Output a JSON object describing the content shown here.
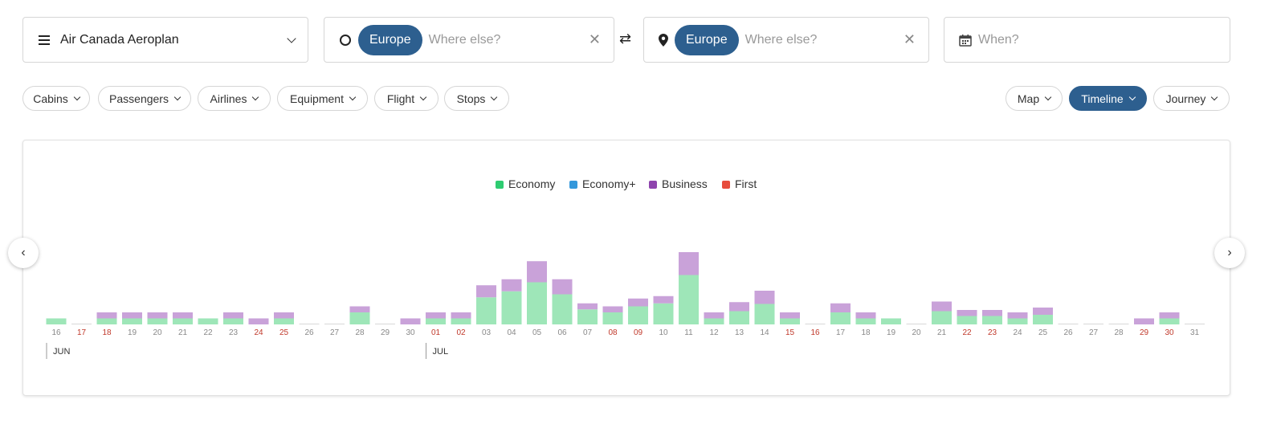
{
  "program": {
    "label": "Air Canada Aeroplan",
    "icon": "menu-icon"
  },
  "origin": {
    "chip": "Europe",
    "placeholder": "Where else?",
    "icon": "circle-icon"
  },
  "destination": {
    "chip": "Europe",
    "placeholder": "Where else?",
    "icon": "map-pin-icon"
  },
  "swap_icon": "swap-icon",
  "when": {
    "placeholder": "When?",
    "icon": "calendar-icon"
  },
  "filters": [
    "Cabins",
    "Passengers",
    "Airlines",
    "Equipment",
    "Flight",
    "Stops"
  ],
  "views": [
    {
      "label": "Map",
      "active": false
    },
    {
      "label": "Timeline",
      "active": true
    },
    {
      "label": "Journey",
      "active": false
    }
  ],
  "colors": {
    "accent": "#2d5f8f",
    "economy": "#2ecc71",
    "economy_plus": "#3498db",
    "business": "#8e44ad",
    "first": "#e74c3c",
    "weekend_label": "#c0392b"
  },
  "chart_data": {
    "type": "bar",
    "stacked": true,
    "legend_position": "top-center",
    "series": [
      {
        "name": "Economy"
      },
      {
        "name": "Economy+"
      },
      {
        "name": "Business"
      },
      {
        "name": "First"
      }
    ],
    "months": [
      {
        "label": "JUN",
        "start_index": 0
      },
      {
        "label": "JUL",
        "start_index": 15
      }
    ],
    "days": [
      {
        "label": "16",
        "weekend": false,
        "economy": 1,
        "economy_plus": 0,
        "business": 0,
        "first": 0
      },
      {
        "label": "17",
        "weekend": true,
        "economy": 0,
        "economy_plus": 0,
        "business": 0,
        "first": 0
      },
      {
        "label": "18",
        "weekend": true,
        "economy": 1,
        "economy_plus": 0,
        "business": 1,
        "first": 0
      },
      {
        "label": "19",
        "weekend": false,
        "economy": 1,
        "economy_plus": 0,
        "business": 1,
        "first": 0
      },
      {
        "label": "20",
        "weekend": false,
        "economy": 1,
        "economy_plus": 0,
        "business": 1,
        "first": 0
      },
      {
        "label": "21",
        "weekend": false,
        "economy": 1,
        "economy_plus": 0,
        "business": 1,
        "first": 0
      },
      {
        "label": "22",
        "weekend": false,
        "economy": 1,
        "economy_plus": 0,
        "business": 0,
        "first": 0
      },
      {
        "label": "23",
        "weekend": false,
        "economy": 1,
        "economy_plus": 0,
        "business": 1,
        "first": 0
      },
      {
        "label": "24",
        "weekend": true,
        "economy": 0,
        "economy_plus": 0,
        "business": 1,
        "first": 0
      },
      {
        "label": "25",
        "weekend": true,
        "economy": 1,
        "economy_plus": 0,
        "business": 1,
        "first": 0
      },
      {
        "label": "26",
        "weekend": false,
        "economy": 0,
        "economy_plus": 0,
        "business": 0,
        "first": 0
      },
      {
        "label": "27",
        "weekend": false,
        "economy": 0,
        "economy_plus": 0,
        "business": 0,
        "first": 0
      },
      {
        "label": "28",
        "weekend": false,
        "economy": 2,
        "economy_plus": 0,
        "business": 1,
        "first": 0
      },
      {
        "label": "29",
        "weekend": false,
        "economy": 0,
        "economy_plus": 0,
        "business": 0,
        "first": 0
      },
      {
        "label": "30",
        "weekend": false,
        "economy": 0,
        "economy_plus": 0,
        "business": 1,
        "first": 0
      },
      {
        "label": "01",
        "weekend": true,
        "economy": 1,
        "economy_plus": 0,
        "business": 1,
        "first": 0
      },
      {
        "label": "02",
        "weekend": true,
        "economy": 1,
        "economy_plus": 0,
        "business": 1,
        "first": 0
      },
      {
        "label": "03",
        "weekend": false,
        "economy": 4.5,
        "economy_plus": 0,
        "business": 2,
        "first": 0
      },
      {
        "label": "04",
        "weekend": false,
        "economy": 5.5,
        "economy_plus": 0,
        "business": 2,
        "first": 0
      },
      {
        "label": "05",
        "weekend": false,
        "economy": 7,
        "economy_plus": 0,
        "business": 3.5,
        "first": 0
      },
      {
        "label": "06",
        "weekend": false,
        "economy": 5,
        "economy_plus": 0,
        "business": 2.5,
        "first": 0
      },
      {
        "label": "07",
        "weekend": false,
        "economy": 2.5,
        "economy_plus": 0,
        "business": 1,
        "first": 0
      },
      {
        "label": "08",
        "weekend": true,
        "economy": 2,
        "economy_plus": 0,
        "business": 1,
        "first": 0
      },
      {
        "label": "09",
        "weekend": true,
        "economy": 3,
        "economy_plus": 0,
        "business": 1.3,
        "first": 0
      },
      {
        "label": "10",
        "weekend": false,
        "economy": 3.5,
        "economy_plus": 0,
        "business": 1.2,
        "first": 0
      },
      {
        "label": "11",
        "weekend": false,
        "economy": 8.2,
        "economy_plus": 0,
        "business": 3.8,
        "first": 0
      },
      {
        "label": "12",
        "weekend": false,
        "economy": 1,
        "economy_plus": 0,
        "business": 1,
        "first": 0
      },
      {
        "label": "13",
        "weekend": false,
        "economy": 2.2,
        "economy_plus": 0,
        "business": 1.5,
        "first": 0
      },
      {
        "label": "14",
        "weekend": false,
        "economy": 3.4,
        "economy_plus": 0,
        "business": 2.2,
        "first": 0
      },
      {
        "label": "15",
        "weekend": true,
        "economy": 1,
        "economy_plus": 0,
        "business": 1,
        "first": 0
      },
      {
        "label": "16",
        "weekend": true,
        "economy": 0,
        "economy_plus": 0,
        "business": 0,
        "first": 0
      },
      {
        "label": "17",
        "weekend": false,
        "economy": 2,
        "economy_plus": 0,
        "business": 1.5,
        "first": 0
      },
      {
        "label": "18",
        "weekend": false,
        "economy": 1,
        "economy_plus": 0,
        "business": 1,
        "first": 0
      },
      {
        "label": "19",
        "weekend": false,
        "economy": 1,
        "economy_plus": 0,
        "business": 0,
        "first": 0
      },
      {
        "label": "20",
        "weekend": false,
        "economy": 0,
        "economy_plus": 0,
        "business": 0,
        "first": 0
      },
      {
        "label": "21",
        "weekend": false,
        "economy": 2.2,
        "economy_plus": 0,
        "business": 1.6,
        "first": 0
      },
      {
        "label": "22",
        "weekend": true,
        "economy": 1.4,
        "economy_plus": 0,
        "business": 1,
        "first": 0
      },
      {
        "label": "23",
        "weekend": true,
        "economy": 1.4,
        "economy_plus": 0,
        "business": 1,
        "first": 0
      },
      {
        "label": "24",
        "weekend": false,
        "economy": 1,
        "economy_plus": 0,
        "business": 1,
        "first": 0
      },
      {
        "label": "25",
        "weekend": false,
        "economy": 1.6,
        "economy_plus": 0,
        "business": 1.2,
        "first": 0
      },
      {
        "label": "26",
        "weekend": false,
        "economy": 0,
        "economy_plus": 0,
        "business": 0,
        "first": 0
      },
      {
        "label": "27",
        "weekend": false,
        "economy": 0,
        "economy_plus": 0,
        "business": 0,
        "first": 0
      },
      {
        "label": "28",
        "weekend": false,
        "economy": 0,
        "economy_plus": 0,
        "business": 0,
        "first": 0
      },
      {
        "label": "29",
        "weekend": true,
        "economy": 0,
        "economy_plus": 0,
        "business": 1,
        "first": 0
      },
      {
        "label": "30",
        "weekend": true,
        "economy": 1,
        "economy_plus": 0,
        "business": 1,
        "first": 0
      },
      {
        "label": "31",
        "weekend": false,
        "economy": 0,
        "economy_plus": 0,
        "business": 0,
        "first": 0
      }
    ],
    "ylim": [
      0,
      12
    ]
  }
}
